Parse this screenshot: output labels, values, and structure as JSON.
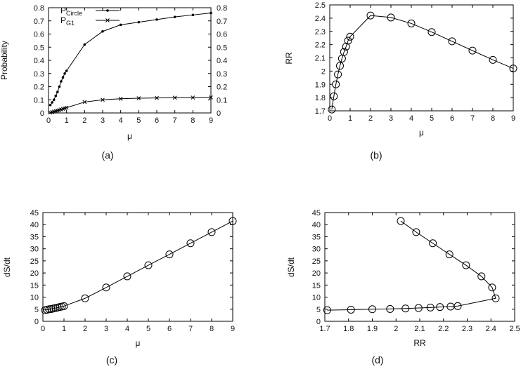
{
  "figure": {
    "captions": [
      "(a)",
      "(b)",
      "(c)",
      "(d)"
    ]
  },
  "chart_data": [
    {
      "type": "line",
      "caption": "(a)",
      "xlabel": "μ",
      "ylabel": "Probability",
      "xlim": [
        0,
        9
      ],
      "ylim": [
        0,
        0.8
      ],
      "xticks": [
        "0",
        "1",
        "2",
        "3",
        "4",
        "5",
        "6",
        "7",
        "8",
        "9"
      ],
      "yticks": [
        "0",
        "0.1",
        "0.2",
        "0.3",
        "0.4",
        "0.5",
        "0.6",
        "0.7",
        "0.8"
      ],
      "right_yticks": [
        "0",
        "0.1",
        "0.2",
        "0.3",
        "0.4",
        "0.5",
        "0.6",
        "0.7",
        "0.8"
      ],
      "legend": "top-left",
      "series": [
        {
          "name": "P",
          "name_sub": "Circle",
          "marker": "dot",
          "x": [
            0.1,
            0.2,
            0.3,
            0.4,
            0.5,
            0.6,
            0.7,
            0.8,
            0.9,
            1,
            2,
            3,
            4,
            5,
            6,
            7,
            8,
            9
          ],
          "y": [
            0.06,
            0.08,
            0.1,
            0.13,
            0.16,
            0.2,
            0.24,
            0.27,
            0.3,
            0.32,
            0.52,
            0.62,
            0.67,
            0.69,
            0.71,
            0.73,
            0.745,
            0.76
          ]
        },
        {
          "name": "P",
          "name_sub": "G1",
          "marker": "x",
          "x": [
            0.1,
            0.2,
            0.3,
            0.4,
            0.5,
            0.6,
            0.7,
            0.8,
            0.9,
            1,
            2,
            3,
            4,
            5,
            6,
            7,
            8,
            9
          ],
          "y": [
            0.003,
            0.006,
            0.01,
            0.014,
            0.018,
            0.022,
            0.026,
            0.031,
            0.035,
            0.04,
            0.083,
            0.1,
            0.108,
            0.112,
            0.114,
            0.116,
            0.117,
            0.118
          ]
        }
      ]
    },
    {
      "type": "line",
      "caption": "(b)",
      "xlabel": "μ",
      "ylabel": "RR",
      "xlim": [
        0,
        9
      ],
      "ylim": [
        1.7,
        2.5
      ],
      "xticks": [
        "0",
        "1",
        "2",
        "3",
        "4",
        "5",
        "6",
        "7",
        "8",
        "9"
      ],
      "yticks": [
        "1.7",
        "1.8",
        "1.9",
        "2",
        "2.1",
        "2.2",
        "2.3",
        "2.4",
        "2.5"
      ],
      "series": [
        {
          "marker": "circle",
          "x": [
            0.1,
            0.2,
            0.3,
            0.4,
            0.5,
            0.6,
            0.7,
            0.8,
            0.9,
            1,
            2,
            3,
            4,
            5,
            6,
            7,
            8,
            9
          ],
          "y": [
            1.71,
            1.81,
            1.9,
            1.975,
            2.04,
            2.095,
            2.145,
            2.185,
            2.23,
            2.26,
            2.42,
            2.405,
            2.36,
            2.295,
            2.225,
            2.155,
            2.085,
            2.02
          ]
        }
      ]
    },
    {
      "type": "line",
      "caption": "(c)",
      "xlabel": "μ",
      "ylabel": "dS/dt",
      "xlim": [
        0,
        9
      ],
      "ylim": [
        0,
        45
      ],
      "xticks": [
        "0",
        "1",
        "2",
        "3",
        "4",
        "5",
        "6",
        "7",
        "8",
        "9"
      ],
      "yticks": [
        "0",
        "5",
        "10",
        "15",
        "20",
        "25",
        "30",
        "35",
        "40",
        "45"
      ],
      "series": [
        {
          "marker": "circle",
          "x": [
            0.1,
            0.2,
            0.3,
            0.4,
            0.5,
            0.6,
            0.7,
            0.8,
            0.9,
            1,
            2,
            3,
            4,
            5,
            6,
            7,
            8,
            9
          ],
          "y": [
            4.6,
            4.8,
            5.0,
            5.1,
            5.3,
            5.5,
            5.7,
            5.9,
            6.1,
            6.3,
            9.5,
            14.0,
            18.6,
            23.2,
            27.7,
            32.3,
            36.9,
            41.5
          ]
        }
      ]
    },
    {
      "type": "line",
      "caption": "(d)",
      "xlabel": "RR",
      "ylabel": "dS/dt",
      "xlim": [
        1.7,
        2.5
      ],
      "ylim": [
        0,
        45
      ],
      "xticks": [
        "1.7",
        "1.8",
        "1.9",
        "2",
        "2.1",
        "2.2",
        "2.3",
        "2.4",
        "2.5"
      ],
      "yticks": [
        "0",
        "5",
        "10",
        "15",
        "20",
        "25",
        "30",
        "35",
        "40",
        "45"
      ],
      "series": [
        {
          "marker": "circle",
          "x": [
            1.71,
            1.81,
            1.9,
            1.975,
            2.04,
            2.095,
            2.145,
            2.185,
            2.23,
            2.26,
            2.42,
            2.405,
            2.36,
            2.295,
            2.225,
            2.155,
            2.085,
            2.02
          ],
          "y": [
            4.6,
            4.8,
            5.0,
            5.1,
            5.3,
            5.5,
            5.7,
            5.9,
            6.1,
            6.3,
            9.5,
            14.0,
            18.6,
            23.2,
            27.7,
            32.3,
            36.9,
            41.5
          ]
        }
      ]
    }
  ]
}
